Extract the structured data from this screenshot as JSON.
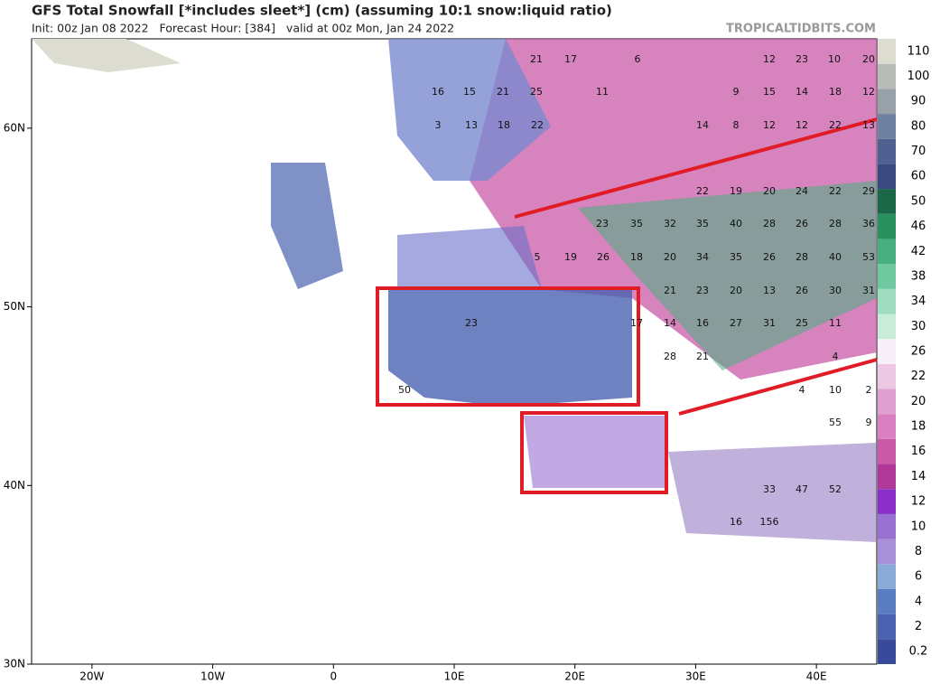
{
  "header": {
    "title": "GFS Total Snowfall [*includes sleet*] (cm) (assuming 10:1 snow:liquid ratio)",
    "subtitle": "Init: 00z Jan 08 2022   Forecast Hour: [384]   valid at 00z Mon, Jan 24 2022",
    "site": "TROPICALTIDBITS.COM"
  },
  "map": {
    "xlim": [
      -25,
      45
    ],
    "ylim": [
      30,
      65
    ],
    "yticks": [
      {
        "value": 30,
        "label": "30N"
      },
      {
        "value": 40,
        "label": "40N"
      },
      {
        "value": 50,
        "label": "50N"
      },
      {
        "value": 60,
        "label": "60N"
      }
    ],
    "xticks": [
      {
        "value": -20,
        "label": "20W"
      },
      {
        "value": -10,
        "label": "10W"
      },
      0,
      {
        "value": 10,
        "label": "10E"
      },
      {
        "value": 20,
        "label": "20E"
      },
      {
        "value": 30,
        "label": "30E"
      },
      {
        "value": 40,
        "label": "40E"
      }
    ],
    "labels": [
      21,
      17,
      6,
      12,
      23,
      10,
      20,
      16,
      15,
      21,
      25,
      11,
      9,
      15,
      14,
      18,
      12,
      3,
      13,
      18,
      22,
      14,
      8,
      12,
      12,
      22,
      13,
      22,
      19,
      20,
      24,
      22,
      29,
      23,
      35,
      32,
      35,
      40,
      28,
      26,
      28,
      36,
      5,
      19,
      26,
      18,
      20,
      34,
      35,
      26,
      28,
      40,
      53,
      21,
      23,
      20,
      13,
      26,
      30,
      31,
      23,
      17,
      14,
      16,
      27,
      31,
      25,
      11,
      28,
      21,
      4,
      50,
      4,
      10,
      2,
      55,
      9,
      33,
      47,
      52,
      156,
      16
    ]
  },
  "colorbar": {
    "levels": [
      0.2,
      2,
      4,
      6,
      8,
      10,
      12,
      14,
      16,
      18,
      20,
      22,
      26,
      30,
      34,
      38,
      42,
      46,
      50,
      60,
      70,
      80,
      90,
      100,
      110
    ],
    "colors": [
      "#3a4a9a",
      "#4a62b0",
      "#5a7cc0",
      "#8aaad8",
      "#a890d8",
      "#9870d0",
      "#8a30c8",
      "#b03898",
      "#c85aa8",
      "#d880c0",
      "#e0a0d0",
      "#ecc8e4",
      "#f8f0f8",
      "#c8ecd8",
      "#a0dcc0",
      "#70c8a0",
      "#48b080",
      "#2a9060",
      "#1a6848",
      "#3a4a80",
      "#506090",
      "#7080a0",
      "#98a0a8",
      "#b8bcb8",
      "#dcdcd0"
    ]
  }
}
